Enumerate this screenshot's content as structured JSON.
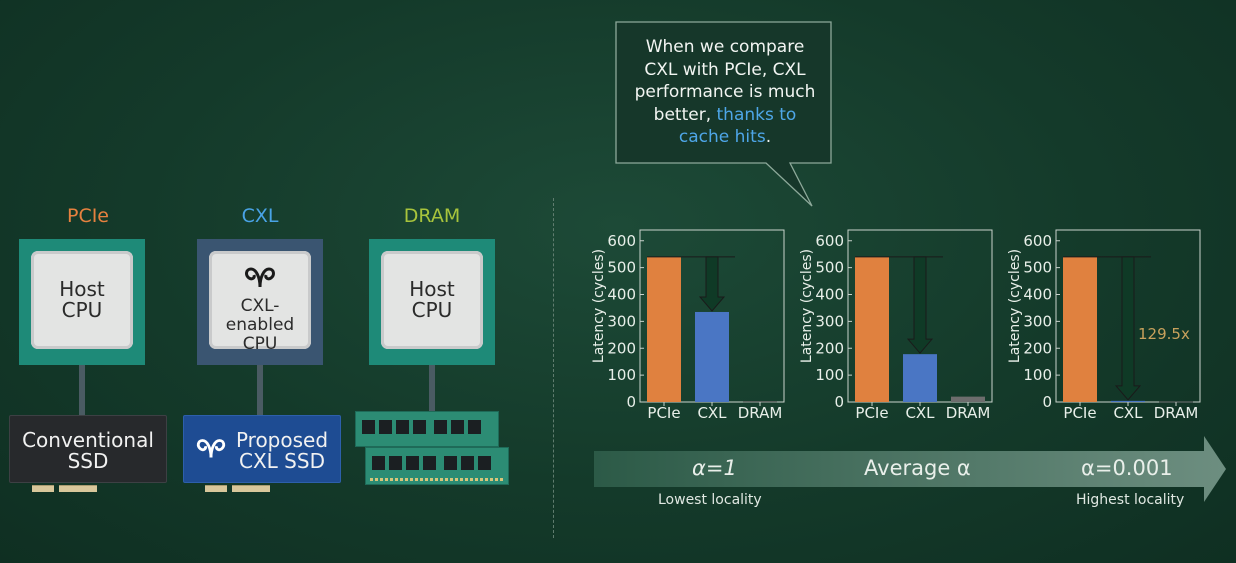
{
  "columns": {
    "pcie": {
      "label": "PCIe",
      "color": "#e6813f",
      "chip_text": [
        "Host",
        "CPU"
      ],
      "device": [
        "Conventional",
        "SSD"
      ]
    },
    "cxl": {
      "label": "CXL",
      "color": "#49a3e6",
      "chip_text": [
        "CXL-enabled",
        "CPU"
      ],
      "device": [
        "Proposed",
        "CXL SSD"
      ]
    },
    "dram": {
      "label": "DRAM",
      "color": "#a8c43c",
      "chip_text": [
        "Host",
        "CPU"
      ]
    }
  },
  "callout": {
    "line1": "When we compare",
    "line2": "CXL with PCIe, CXL",
    "line3": "performance is much",
    "line4_plain": "better, ",
    "line4_hl": "thanks to",
    "line5_hl": "cache hits",
    "line5_end": "."
  },
  "locality": {
    "left_label": "α=1",
    "center_label": "Average α",
    "right_label": "α=0.001",
    "left_caption": "Lowest locality",
    "right_caption": "Highest locality"
  },
  "annotation": "129.5x",
  "chart_data": [
    {
      "type": "bar",
      "categories": [
        "PCIe",
        "CXL",
        "DRAM"
      ],
      "values": [
        540,
        335,
        3
      ],
      "colors": [
        "#e0813f",
        "#4a76c4",
        "#6d6d6d"
      ],
      "ylabel": "Latency (cycles)",
      "ylim": [
        0,
        640
      ],
      "yticks": [
        0,
        100,
        200,
        300,
        400,
        500,
        600
      ]
    },
    {
      "type": "bar",
      "categories": [
        "PCIe",
        "CXL",
        "DRAM"
      ],
      "values": [
        540,
        178,
        20
      ],
      "colors": [
        "#e0813f",
        "#4a76c4",
        "#6d6d6d"
      ],
      "ylabel": "Latency (cycles)",
      "ylim": [
        0,
        640
      ],
      "yticks": [
        0,
        100,
        200,
        300,
        400,
        500,
        600
      ]
    },
    {
      "type": "bar",
      "categories": [
        "PCIe",
        "CXL",
        "DRAM"
      ],
      "values": [
        540,
        4.2,
        2
      ],
      "colors": [
        "#e0813f",
        "#4a76c4",
        "#6d6d6d"
      ],
      "ylabel": "Latency (cycles)",
      "ylim": [
        0,
        640
      ],
      "yticks": [
        0,
        100,
        200,
        300,
        400,
        500,
        600
      ]
    }
  ]
}
